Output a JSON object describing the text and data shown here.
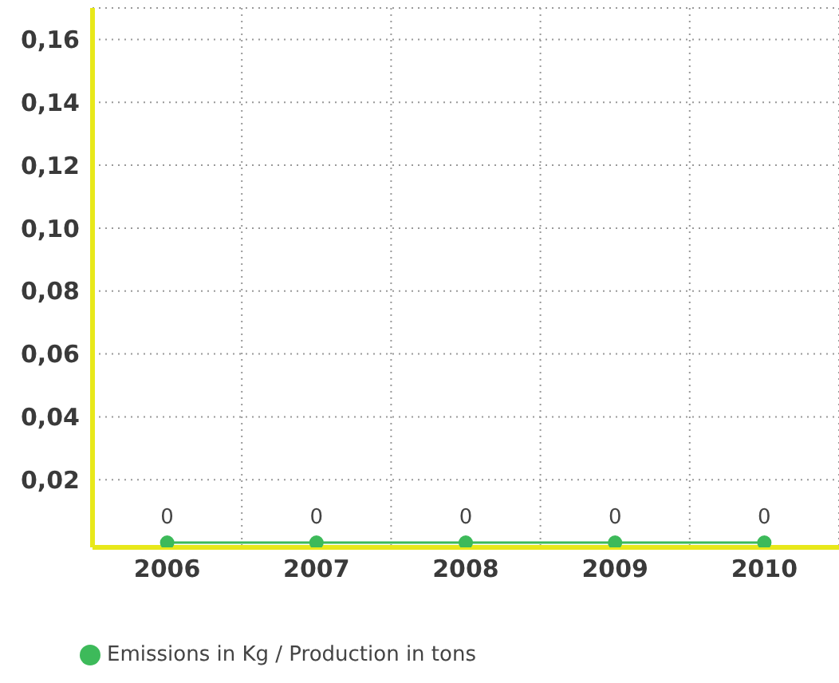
{
  "chart_data": {
    "type": "line",
    "categories": [
      "2006",
      "2007",
      "2008",
      "2009",
      "2010"
    ],
    "series": [
      {
        "name": "Emissions in Kg / Production in tons",
        "color": "#3dba5a",
        "values": [
          0,
          0,
          0,
          0,
          0
        ]
      }
    ],
    "ylim": [
      -0.0015,
      0.17
    ],
    "yticks": [
      {
        "value": 0.02,
        "label": "0,02"
      },
      {
        "value": 0.04,
        "label": "0,04"
      },
      {
        "value": 0.06,
        "label": "0,06"
      },
      {
        "value": 0.08,
        "label": "0,08"
      },
      {
        "value": 0.1,
        "label": "0,10"
      },
      {
        "value": 0.12,
        "label": "0,12"
      },
      {
        "value": 0.14,
        "label": "0,14"
      },
      {
        "value": 0.16,
        "label": "0,16"
      }
    ],
    "grid": true,
    "legend": "bottom left",
    "marker": "circle",
    "line_style": "solid",
    "data_labels": true
  }
}
